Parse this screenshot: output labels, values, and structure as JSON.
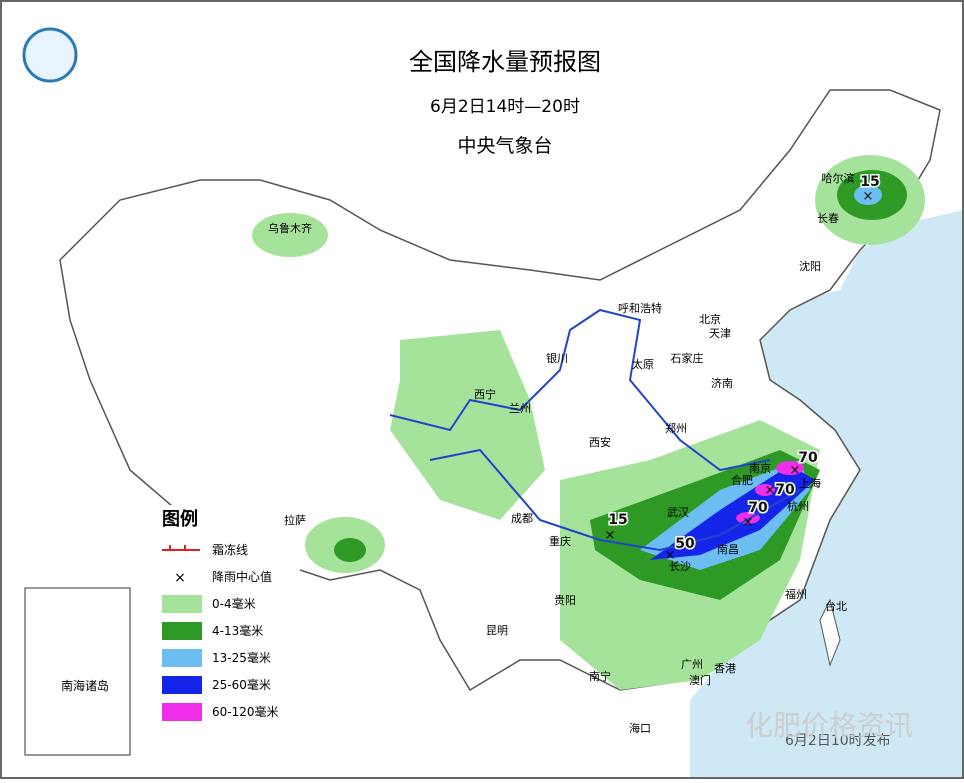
{
  "header": {
    "title": "全国降水量预报图",
    "subtitle": "6月2日14时—20时",
    "issuer": "中央气象台"
  },
  "legend": {
    "title": "图例",
    "items": [
      "霜冻线",
      "降雨中心值",
      "0-4毫米",
      "4-13毫米",
      "13-25毫米",
      "25-60毫米",
      "60-120毫米"
    ]
  },
  "inset": {
    "label": "南海诸岛"
  },
  "cities": [
    "乌鲁木齐",
    "哈尔滨",
    "长春",
    "沈阳",
    "呼和浩特",
    "北京",
    "天津",
    "银川",
    "太原",
    "石家庄",
    "西宁",
    "兰州",
    "济南",
    "郑州",
    "西安",
    "合肥",
    "南京",
    "上海",
    "杭州",
    "武汉",
    "南昌",
    "成都",
    "重庆",
    "长沙",
    "贵阳",
    "福州",
    "台北",
    "拉萨",
    "昆明",
    "南宁",
    "广州",
    "香港",
    "澳门",
    "海口"
  ],
  "rain_centers": [
    15,
    70,
    70,
    70,
    50,
    15
  ],
  "footer": {
    "issued": "6月2日10时发布",
    "watermark": "化肥价格资讯"
  }
}
